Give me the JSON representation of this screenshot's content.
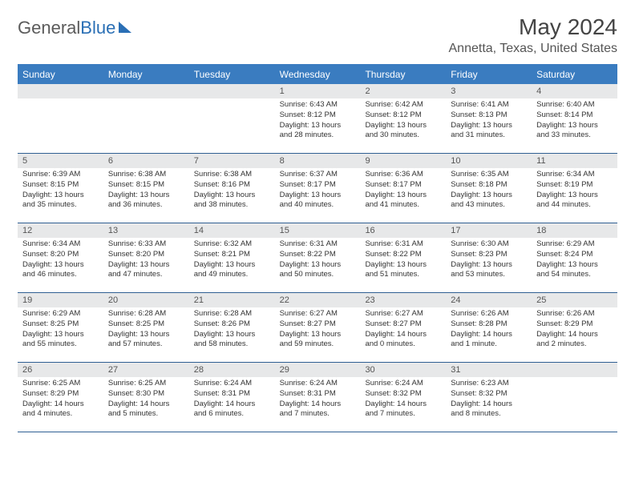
{
  "logo": {
    "text_a": "General",
    "text_b": "Blue"
  },
  "title": "May 2024",
  "location": "Annetta, Texas, United States",
  "day_headers": [
    "Sunday",
    "Monday",
    "Tuesday",
    "Wednesday",
    "Thursday",
    "Friday",
    "Saturday"
  ],
  "colors": {
    "header_bg": "#3a7cc0",
    "header_text": "#ffffff",
    "daynum_bg": "#e7e8e9",
    "week_border": "#2f5f93",
    "logo_gray": "#5b5b5b",
    "logo_blue": "#2a6fb5"
  },
  "weeks": [
    [
      {
        "n": "",
        "sunrise": "",
        "sunset": "",
        "daylight": ""
      },
      {
        "n": "",
        "sunrise": "",
        "sunset": "",
        "daylight": ""
      },
      {
        "n": "",
        "sunrise": "",
        "sunset": "",
        "daylight": ""
      },
      {
        "n": "1",
        "sunrise": "Sunrise: 6:43 AM",
        "sunset": "Sunset: 8:12 PM",
        "daylight": "Daylight: 13 hours and 28 minutes."
      },
      {
        "n": "2",
        "sunrise": "Sunrise: 6:42 AM",
        "sunset": "Sunset: 8:12 PM",
        "daylight": "Daylight: 13 hours and 30 minutes."
      },
      {
        "n": "3",
        "sunrise": "Sunrise: 6:41 AM",
        "sunset": "Sunset: 8:13 PM",
        "daylight": "Daylight: 13 hours and 31 minutes."
      },
      {
        "n": "4",
        "sunrise": "Sunrise: 6:40 AM",
        "sunset": "Sunset: 8:14 PM",
        "daylight": "Daylight: 13 hours and 33 minutes."
      }
    ],
    [
      {
        "n": "5",
        "sunrise": "Sunrise: 6:39 AM",
        "sunset": "Sunset: 8:15 PM",
        "daylight": "Daylight: 13 hours and 35 minutes."
      },
      {
        "n": "6",
        "sunrise": "Sunrise: 6:38 AM",
        "sunset": "Sunset: 8:15 PM",
        "daylight": "Daylight: 13 hours and 36 minutes."
      },
      {
        "n": "7",
        "sunrise": "Sunrise: 6:38 AM",
        "sunset": "Sunset: 8:16 PM",
        "daylight": "Daylight: 13 hours and 38 minutes."
      },
      {
        "n": "8",
        "sunrise": "Sunrise: 6:37 AM",
        "sunset": "Sunset: 8:17 PM",
        "daylight": "Daylight: 13 hours and 40 minutes."
      },
      {
        "n": "9",
        "sunrise": "Sunrise: 6:36 AM",
        "sunset": "Sunset: 8:17 PM",
        "daylight": "Daylight: 13 hours and 41 minutes."
      },
      {
        "n": "10",
        "sunrise": "Sunrise: 6:35 AM",
        "sunset": "Sunset: 8:18 PM",
        "daylight": "Daylight: 13 hours and 43 minutes."
      },
      {
        "n": "11",
        "sunrise": "Sunrise: 6:34 AM",
        "sunset": "Sunset: 8:19 PM",
        "daylight": "Daylight: 13 hours and 44 minutes."
      }
    ],
    [
      {
        "n": "12",
        "sunrise": "Sunrise: 6:34 AM",
        "sunset": "Sunset: 8:20 PM",
        "daylight": "Daylight: 13 hours and 46 minutes."
      },
      {
        "n": "13",
        "sunrise": "Sunrise: 6:33 AM",
        "sunset": "Sunset: 8:20 PM",
        "daylight": "Daylight: 13 hours and 47 minutes."
      },
      {
        "n": "14",
        "sunrise": "Sunrise: 6:32 AM",
        "sunset": "Sunset: 8:21 PM",
        "daylight": "Daylight: 13 hours and 49 minutes."
      },
      {
        "n": "15",
        "sunrise": "Sunrise: 6:31 AM",
        "sunset": "Sunset: 8:22 PM",
        "daylight": "Daylight: 13 hours and 50 minutes."
      },
      {
        "n": "16",
        "sunrise": "Sunrise: 6:31 AM",
        "sunset": "Sunset: 8:22 PM",
        "daylight": "Daylight: 13 hours and 51 minutes."
      },
      {
        "n": "17",
        "sunrise": "Sunrise: 6:30 AM",
        "sunset": "Sunset: 8:23 PM",
        "daylight": "Daylight: 13 hours and 53 minutes."
      },
      {
        "n": "18",
        "sunrise": "Sunrise: 6:29 AM",
        "sunset": "Sunset: 8:24 PM",
        "daylight": "Daylight: 13 hours and 54 minutes."
      }
    ],
    [
      {
        "n": "19",
        "sunrise": "Sunrise: 6:29 AM",
        "sunset": "Sunset: 8:25 PM",
        "daylight": "Daylight: 13 hours and 55 minutes."
      },
      {
        "n": "20",
        "sunrise": "Sunrise: 6:28 AM",
        "sunset": "Sunset: 8:25 PM",
        "daylight": "Daylight: 13 hours and 57 minutes."
      },
      {
        "n": "21",
        "sunrise": "Sunrise: 6:28 AM",
        "sunset": "Sunset: 8:26 PM",
        "daylight": "Daylight: 13 hours and 58 minutes."
      },
      {
        "n": "22",
        "sunrise": "Sunrise: 6:27 AM",
        "sunset": "Sunset: 8:27 PM",
        "daylight": "Daylight: 13 hours and 59 minutes."
      },
      {
        "n": "23",
        "sunrise": "Sunrise: 6:27 AM",
        "sunset": "Sunset: 8:27 PM",
        "daylight": "Daylight: 14 hours and 0 minutes."
      },
      {
        "n": "24",
        "sunrise": "Sunrise: 6:26 AM",
        "sunset": "Sunset: 8:28 PM",
        "daylight": "Daylight: 14 hours and 1 minute."
      },
      {
        "n": "25",
        "sunrise": "Sunrise: 6:26 AM",
        "sunset": "Sunset: 8:29 PM",
        "daylight": "Daylight: 14 hours and 2 minutes."
      }
    ],
    [
      {
        "n": "26",
        "sunrise": "Sunrise: 6:25 AM",
        "sunset": "Sunset: 8:29 PM",
        "daylight": "Daylight: 14 hours and 4 minutes."
      },
      {
        "n": "27",
        "sunrise": "Sunrise: 6:25 AM",
        "sunset": "Sunset: 8:30 PM",
        "daylight": "Daylight: 14 hours and 5 minutes."
      },
      {
        "n": "28",
        "sunrise": "Sunrise: 6:24 AM",
        "sunset": "Sunset: 8:31 PM",
        "daylight": "Daylight: 14 hours and 6 minutes."
      },
      {
        "n": "29",
        "sunrise": "Sunrise: 6:24 AM",
        "sunset": "Sunset: 8:31 PM",
        "daylight": "Daylight: 14 hours and 7 minutes."
      },
      {
        "n": "30",
        "sunrise": "Sunrise: 6:24 AM",
        "sunset": "Sunset: 8:32 PM",
        "daylight": "Daylight: 14 hours and 7 minutes."
      },
      {
        "n": "31",
        "sunrise": "Sunrise: 6:23 AM",
        "sunset": "Sunset: 8:32 PM",
        "daylight": "Daylight: 14 hours and 8 minutes."
      },
      {
        "n": "",
        "sunrise": "",
        "sunset": "",
        "daylight": ""
      }
    ]
  ]
}
